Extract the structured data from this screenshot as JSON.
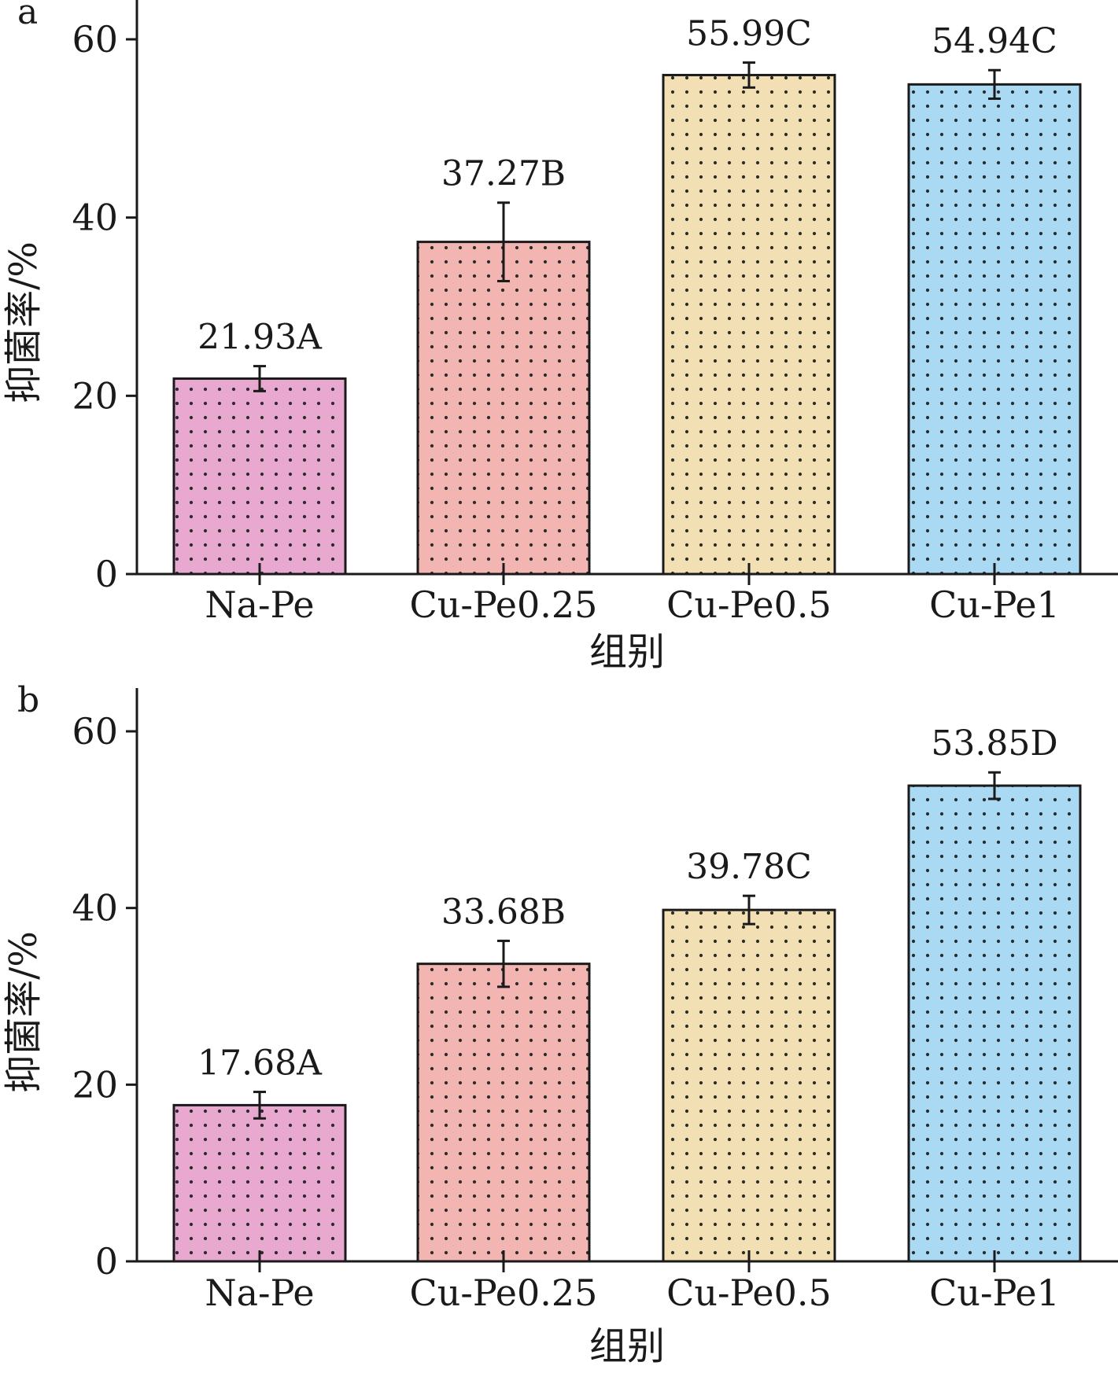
{
  "chart_data": [
    {
      "panel": "a",
      "type": "bar",
      "categories": [
        "Na-Pe",
        "Cu-Pe0.25",
        "Cu-Pe0.5",
        "Cu-Pe1"
      ],
      "values": [
        21.93,
        37.27,
        55.99,
        54.94
      ],
      "errors": [
        1.4,
        4.4,
        1.4,
        1.6
      ],
      "value_labels": [
        "21.93A",
        "37.27B",
        "55.99C",
        "54.94C"
      ],
      "colors": [
        "#e8a8cf",
        "#f2b5b1",
        "#f3dfb4",
        "#a9d9f3"
      ],
      "xlabel": "组别",
      "ylabel": "抑菌率/%",
      "ylim": [
        0,
        65
      ],
      "yticks": [
        0,
        20,
        40,
        60
      ],
      "grid": false
    },
    {
      "panel": "b",
      "type": "bar",
      "categories": [
        "Na-Pe",
        "Cu-Pe0.25",
        "Cu-Pe0.5",
        "Cu-Pe1"
      ],
      "values": [
        17.68,
        33.68,
        39.78,
        53.85
      ],
      "errors": [
        1.5,
        2.6,
        1.6,
        1.5
      ],
      "value_labels": [
        "17.68A",
        "33.68B",
        "39.78C",
        "53.85D"
      ],
      "colors": [
        "#e8a8cf",
        "#f2b5b1",
        "#f3dfb4",
        "#a9d9f3"
      ],
      "xlabel": "组别",
      "ylabel": "抑菌率/%",
      "ylim": [
        0,
        65
      ],
      "yticks": [
        0,
        20,
        40,
        60
      ],
      "grid": false
    }
  ]
}
